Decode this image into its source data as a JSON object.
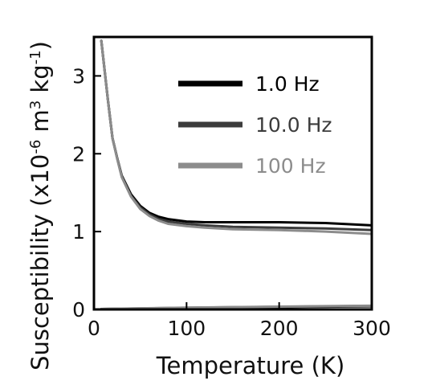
{
  "chart_data": {
    "type": "line",
    "title": "",
    "xlabel": "Temperature (K)",
    "ylabel": "Susceptibility (x10",
    "ylabel_exp1": "-6",
    "ylabel_mid": " m",
    "ylabel_exp2": "3",
    "ylabel_mid2": " kg",
    "ylabel_exp3": "-1",
    "ylabel_end": ")",
    "xlim": [
      0,
      300
    ],
    "ylim": [
      0,
      3.5
    ],
    "xticks": [
      0,
      100,
      200,
      300
    ],
    "xtick_labels": [
      "0",
      "100",
      "200",
      "300"
    ],
    "yticks": [
      0,
      1,
      2,
      3
    ],
    "ytick_labels": [
      "0",
      "1",
      "2",
      "3"
    ],
    "grid": false,
    "legend_position": "top-right",
    "series": [
      {
        "name": "1.0 Hz",
        "color": "#000000",
        "real_part": {
          "x": [
            8,
            15,
            20,
            25,
            30,
            40,
            50,
            60,
            70,
            80,
            100,
            120,
            150,
            200,
            250,
            300
          ],
          "y": [
            3.45,
            2.7,
            2.2,
            1.95,
            1.72,
            1.48,
            1.33,
            1.24,
            1.19,
            1.16,
            1.13,
            1.12,
            1.12,
            1.12,
            1.11,
            1.08
          ]
        },
        "imag_part": {
          "x": [
            8,
            50,
            100,
            150,
            200,
            250,
            300
          ],
          "y": [
            0.005,
            0.01,
            0.02,
            0.025,
            0.03,
            0.035,
            0.04
          ]
        }
      },
      {
        "name": "10.0 Hz",
        "color": "#3c3c3c",
        "real_part": {
          "x": [
            8,
            15,
            20,
            25,
            30,
            40,
            50,
            60,
            70,
            80,
            100,
            120,
            150,
            200,
            250,
            300
          ],
          "y": [
            3.45,
            2.7,
            2.2,
            1.95,
            1.71,
            1.46,
            1.31,
            1.22,
            1.16,
            1.13,
            1.1,
            1.08,
            1.06,
            1.05,
            1.04,
            1.02
          ]
        },
        "imag_part": {
          "x": [
            8,
            50,
            100,
            150,
            200,
            250,
            300
          ],
          "y": [
            0.005,
            0.012,
            0.022,
            0.028,
            0.034,
            0.04,
            0.045
          ]
        }
      },
      {
        "name": "100 Hz",
        "color": "#8c8c8c",
        "real_part": {
          "x": [
            8,
            15,
            20,
            25,
            30,
            40,
            50,
            60,
            70,
            80,
            100,
            120,
            150,
            200,
            250,
            300
          ],
          "y": [
            3.45,
            2.7,
            2.2,
            1.94,
            1.7,
            1.45,
            1.29,
            1.2,
            1.14,
            1.1,
            1.07,
            1.05,
            1.03,
            1.02,
            1.0,
            0.97
          ]
        },
        "imag_part": {
          "x": [
            8,
            50,
            100,
            150,
            200,
            250,
            300
          ],
          "y": [
            0.006,
            0.014,
            0.024,
            0.03,
            0.036,
            0.042,
            0.048
          ]
        }
      }
    ]
  }
}
